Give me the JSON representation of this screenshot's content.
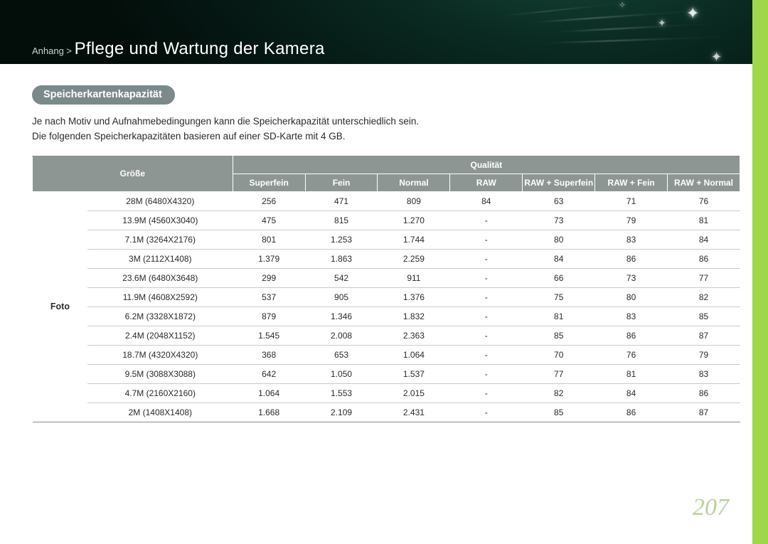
{
  "header": {
    "breadcrumb_prefix": "Anhang > ",
    "title": "Pflege und Wartung der Kamera"
  },
  "section_label": "Speicherkartenkapazität",
  "description_line1": "Je nach Motiv und Aufnahmebedingungen kann die Speicherkapazität unterschiedlich sein.",
  "description_line2": "Die folgenden Speicherkapazitäten basieren auf einer SD-Karte mit 4 GB.",
  "table": {
    "header_size": "Größe",
    "header_quality": "Qualität",
    "quality_columns": [
      "Superfein",
      "Fein",
      "Normal",
      "RAW",
      "RAW + Superfein",
      "RAW + Fein",
      "RAW + Normal"
    ],
    "row_group_label": "Foto",
    "rows": [
      {
        "size": "28M (6480X4320)",
        "vals": [
          "256",
          "471",
          "809",
          "84",
          "63",
          "71",
          "76"
        ]
      },
      {
        "size": "13.9M (4560X3040)",
        "vals": [
          "475",
          "815",
          "1.270",
          "-",
          "73",
          "79",
          "81"
        ]
      },
      {
        "size": "7.1M (3264X2176)",
        "vals": [
          "801",
          "1.253",
          "1.744",
          "-",
          "80",
          "83",
          "84"
        ]
      },
      {
        "size": "3M (2112X1408)",
        "vals": [
          "1.379",
          "1.863",
          "2.259",
          "-",
          "84",
          "86",
          "86"
        ]
      },
      {
        "size": "23.6M (6480X3648)",
        "vals": [
          "299",
          "542",
          "911",
          "-",
          "66",
          "73",
          "77"
        ]
      },
      {
        "size": "11.9M (4608X2592)",
        "vals": [
          "537",
          "905",
          "1.376",
          "-",
          "75",
          "80",
          "82"
        ]
      },
      {
        "size": "6.2M (3328X1872)",
        "vals": [
          "879",
          "1.346",
          "1.832",
          "-",
          "81",
          "83",
          "85"
        ]
      },
      {
        "size": "2.4M (2048X1152)",
        "vals": [
          "1.545",
          "2.008",
          "2.363",
          "-",
          "85",
          "86",
          "87"
        ]
      },
      {
        "size": "18.7M (4320X4320)",
        "vals": [
          "368",
          "653",
          "1.064",
          "-",
          "70",
          "76",
          "79"
        ]
      },
      {
        "size": "9.5M (3088X3088)",
        "vals": [
          "642",
          "1.050",
          "1.537",
          "-",
          "77",
          "81",
          "83"
        ]
      },
      {
        "size": "4.7M (2160X2160)",
        "vals": [
          "1.064",
          "1.553",
          "2.015",
          "-",
          "82",
          "84",
          "86"
        ]
      },
      {
        "size": "2M (1408X1408)",
        "vals": [
          "1.668",
          "2.109",
          "2.431",
          "-",
          "85",
          "86",
          "87"
        ]
      }
    ]
  },
  "page_number": "207",
  "colors": {
    "accent_green": "#9fd64a",
    "header_teal": "#8e9694",
    "page_num": "#b4d49a"
  }
}
